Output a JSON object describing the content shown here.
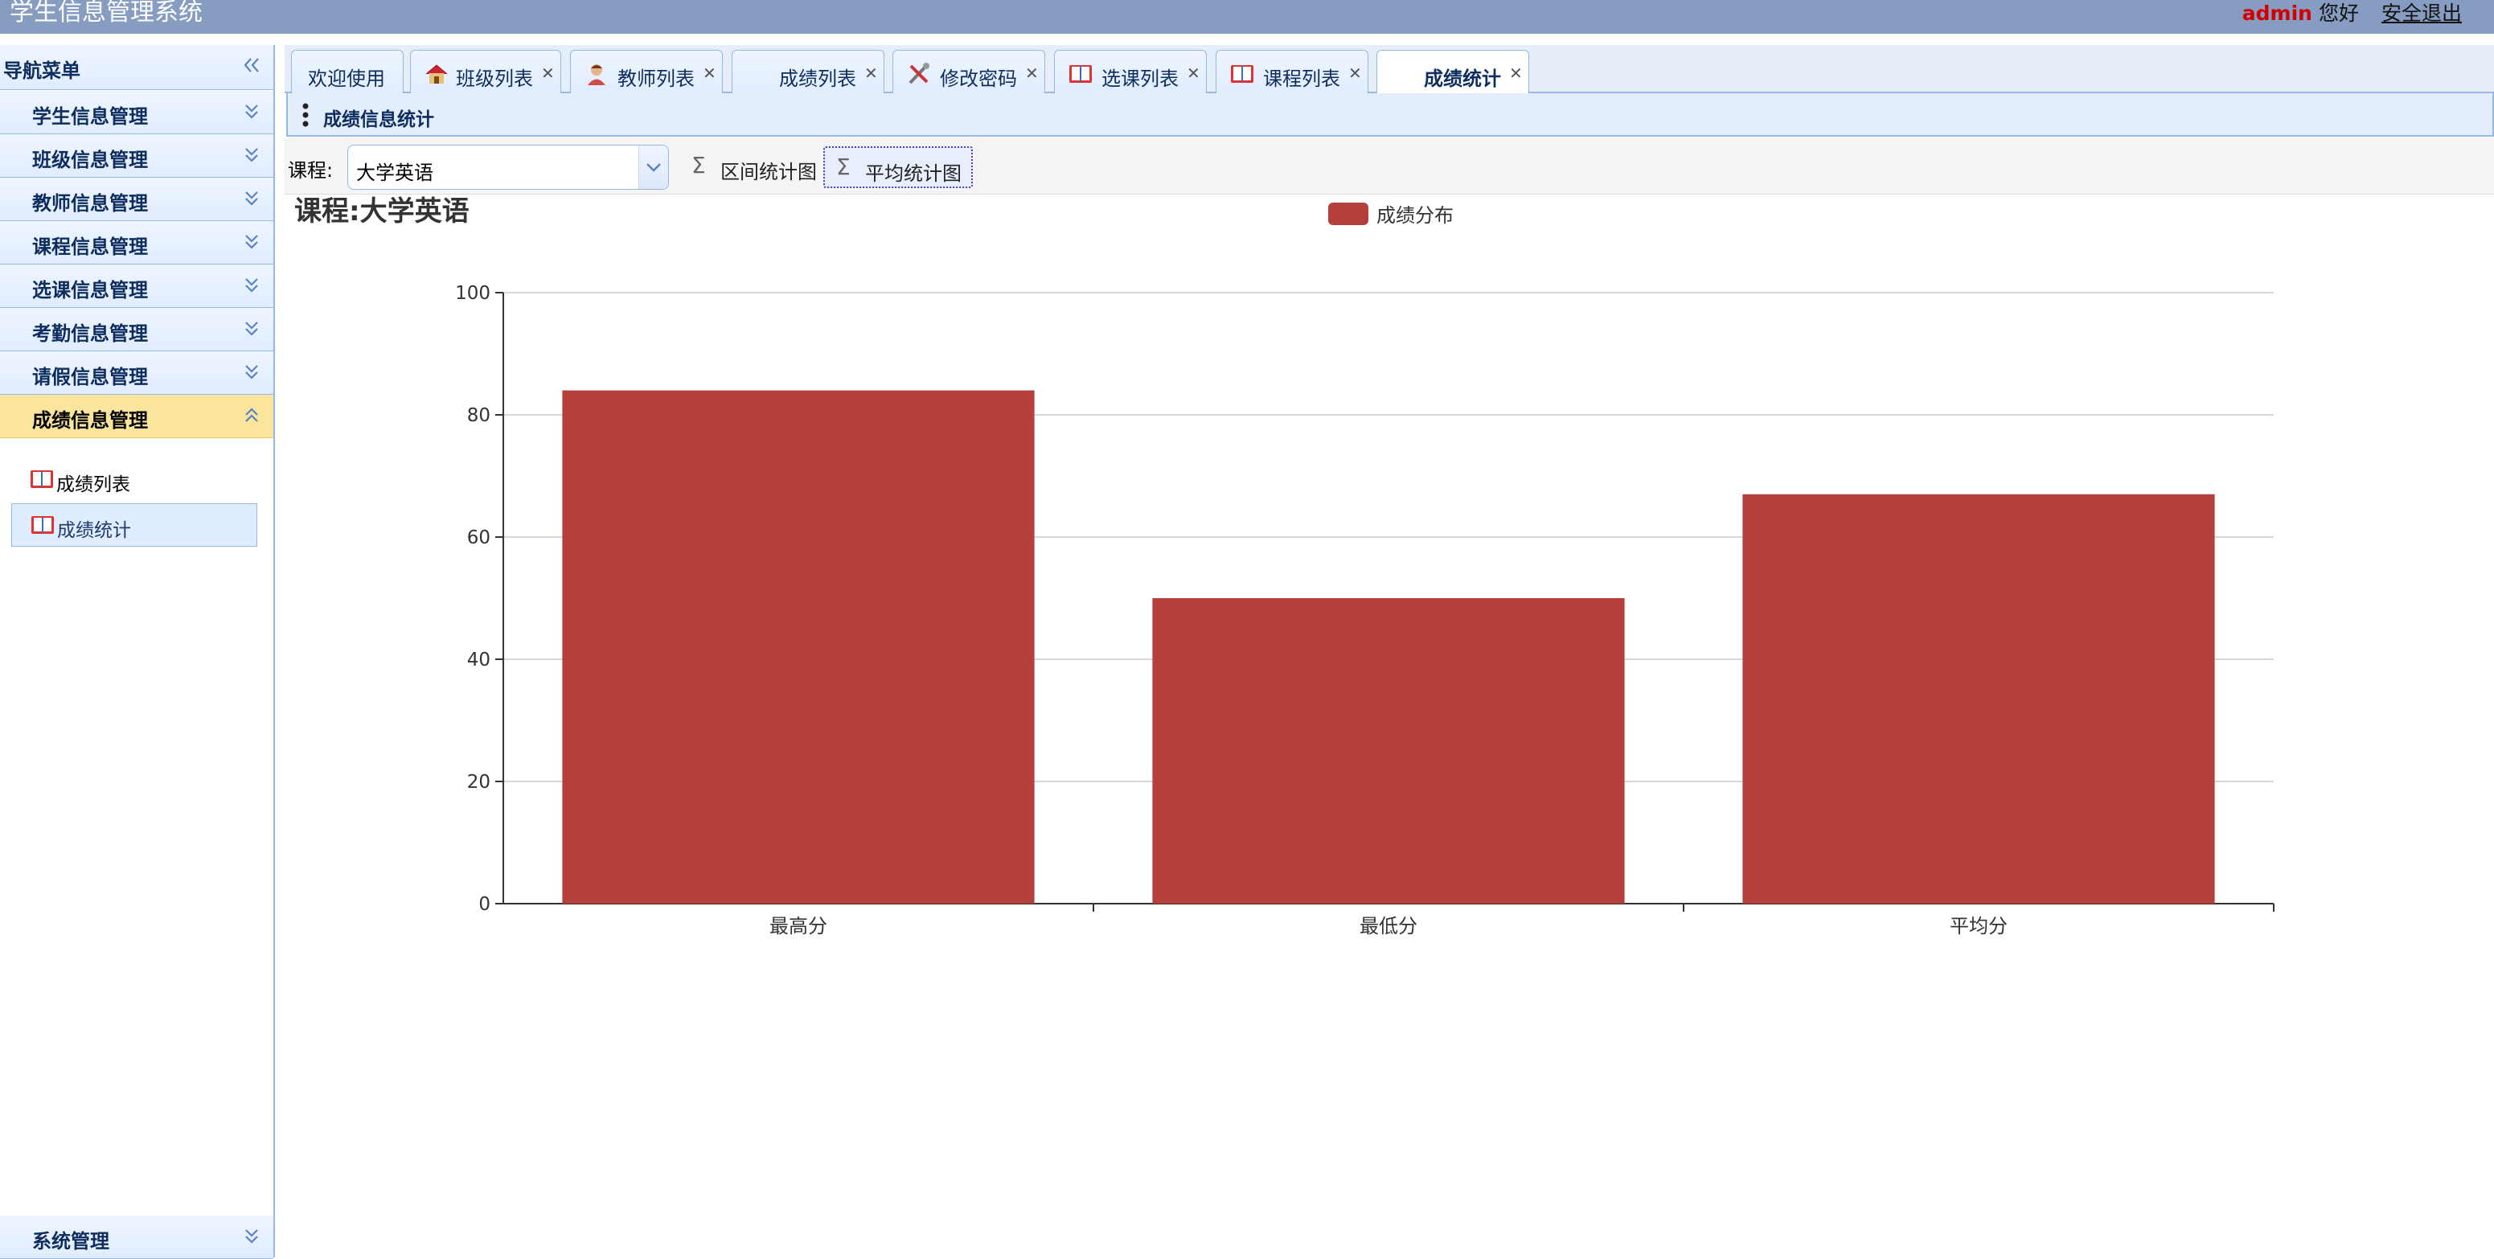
{
  "app": {
    "title": "学生信息管理系统",
    "user": "admin",
    "greeting": "您好",
    "logout": "安全退出"
  },
  "sidebar": {
    "title": "导航菜单",
    "menus": [
      {
        "label": "学生信息管理"
      },
      {
        "label": "班级信息管理"
      },
      {
        "label": "教师信息管理"
      },
      {
        "label": "课程信息管理"
      },
      {
        "label": "选课信息管理"
      },
      {
        "label": "考勤信息管理"
      },
      {
        "label": "请假信息管理"
      },
      {
        "label": "成绩信息管理",
        "active": true
      }
    ],
    "submenu": [
      {
        "label": "成绩列表"
      },
      {
        "label": "成绩统计",
        "selected": true
      }
    ],
    "bottom_menu": {
      "label": "系统管理"
    }
  },
  "tabs": [
    {
      "label": "欢迎使用",
      "icon": "none",
      "closable": false
    },
    {
      "label": "班级列表",
      "icon": "house-icon",
      "closable": true
    },
    {
      "label": "教师列表",
      "icon": "user-icon",
      "closable": true
    },
    {
      "label": "成绩列表",
      "icon": "none",
      "closable": true
    },
    {
      "label": "修改密码",
      "icon": "tools-icon",
      "closable": true
    },
    {
      "label": "选课列表",
      "icon": "book-icon",
      "closable": true
    },
    {
      "label": "课程列表",
      "icon": "book-icon",
      "closable": true
    },
    {
      "label": "成绩统计",
      "icon": "none",
      "closable": true,
      "active": true
    }
  ],
  "panel": {
    "title": "成绩信息统计"
  },
  "toolbar": {
    "course_label": "课程:",
    "course_value": "大学英语",
    "btn_range": "区间统计图",
    "btn_avg": "平均统计图"
  },
  "chart_data": {
    "type": "bar",
    "title": "课程:大学英语",
    "categories": [
      "最高分",
      "最低分",
      "平均分"
    ],
    "series": [
      {
        "name": "成绩分布",
        "values": [
          84,
          50,
          67
        ],
        "color": "#b5403b"
      }
    ],
    "ylim": [
      0,
      100
    ],
    "yticks": [
      0,
      20,
      40,
      60,
      80,
      100
    ],
    "grid": true,
    "legend": "top-center"
  },
  "colors": {
    "header": "#869cc0",
    "bar": "#b5403b",
    "panel_border": "#95b8e7",
    "active_menu": "#fbe49b"
  }
}
